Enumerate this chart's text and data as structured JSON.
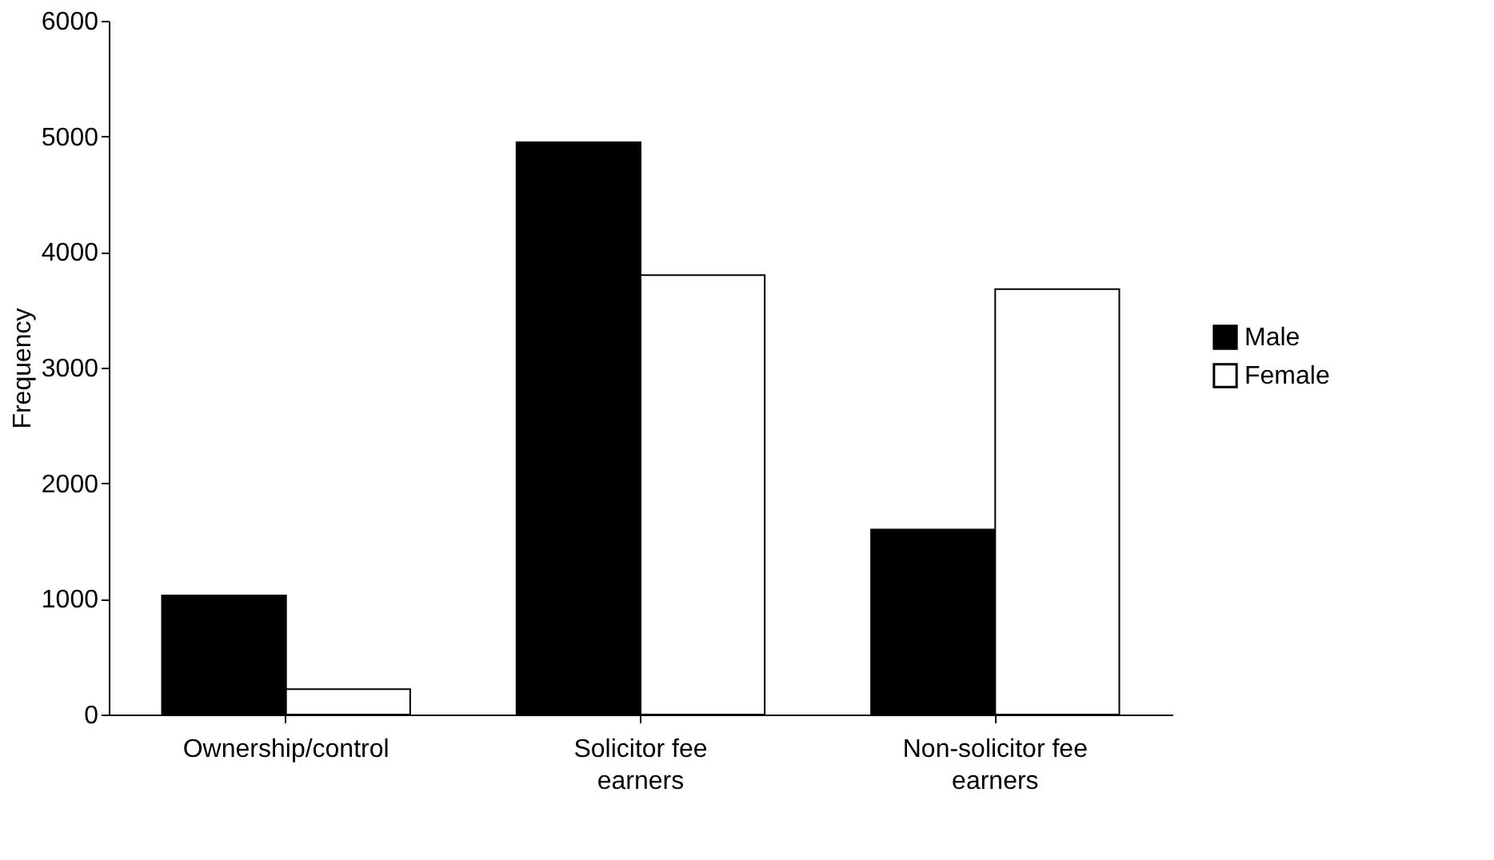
{
  "chart_data": {
    "type": "bar",
    "ylabel": "Frequency",
    "categories": [
      "Ownership/control",
      "Solicitor fee earners",
      "Non-solicitor fee earners"
    ],
    "series": [
      {
        "name": "Male",
        "color": "#000000",
        "values": [
          1030,
          4950,
          1600
        ]
      },
      {
        "name": "Female",
        "color": "#ffffff",
        "values": [
          220,
          3800,
          3680
        ]
      }
    ],
    "ylim": [
      0,
      6000
    ],
    "yticks": [
      0,
      1000,
      2000,
      3000,
      4000,
      5000,
      6000
    ],
    "grid": false,
    "legend": "right"
  }
}
